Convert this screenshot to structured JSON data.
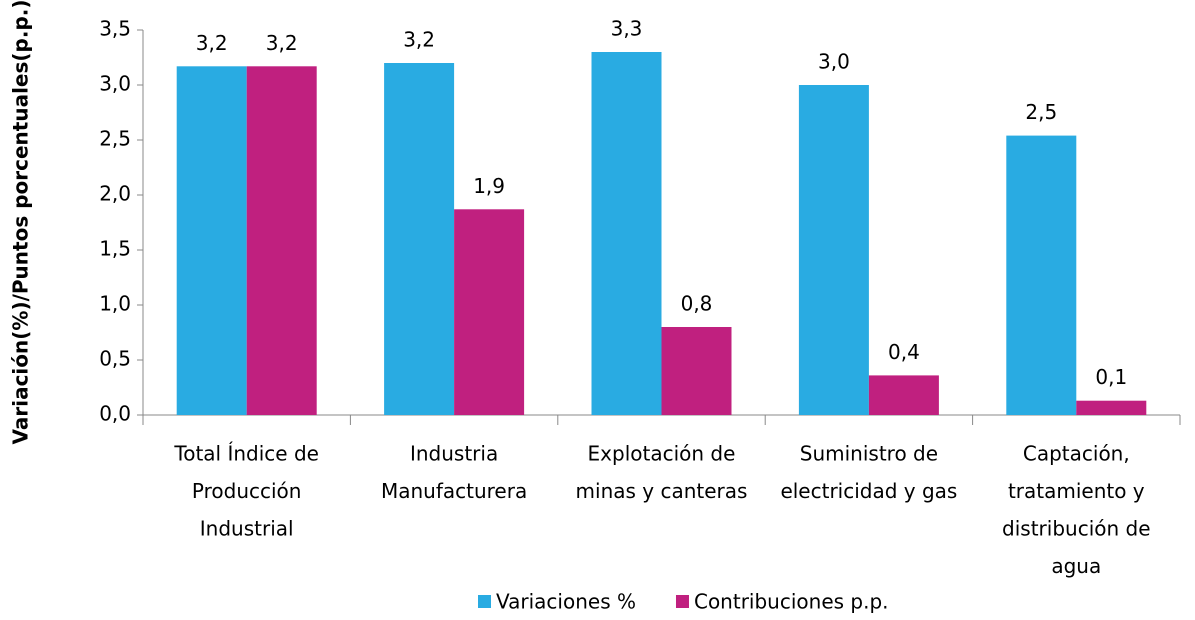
{
  "chart_data": {
    "type": "bar",
    "y_label": "Variación(%)/Puntos porcentuales(p.p.)",
    "categories": [
      [
        "Total Índice de",
        "Producción",
        "Industrial"
      ],
      [
        "Industria",
        "Manufacturera"
      ],
      [
        "Explotación de",
        "minas y canteras"
      ],
      [
        "Suministro de",
        "electricidad y gas"
      ],
      [
        "Captación,",
        "tratamiento y",
        "distribución de",
        "agua"
      ]
    ],
    "series": [
      {
        "name": "Variaciones %",
        "color": "#29abe2",
        "values": [
          3.17,
          3.2,
          3.3,
          3.0,
          2.54
        ],
        "value_labels": [
          "3,2",
          "3,2",
          "3,3",
          "3,0",
          "2,5"
        ]
      },
      {
        "name": "Contribuciones p.p.",
        "color": "#c0207f",
        "values": [
          3.17,
          1.87,
          0.8,
          0.36,
          0.13
        ],
        "value_labels": [
          "3,2",
          "1,9",
          "0,8",
          "0,4",
          "0,1"
        ]
      }
    ],
    "ylim": [
      0,
      3.5
    ],
    "yticks": [
      {
        "value": 0,
        "label": "0,0"
      },
      {
        "value": 0.5,
        "label": "0,5"
      },
      {
        "value": 1,
        "label": "1,0"
      },
      {
        "value": 1.5,
        "label": "1,5"
      },
      {
        "value": 2,
        "label": "2,0"
      },
      {
        "value": 2.5,
        "label": "2,5"
      },
      {
        "value": 3,
        "label": "3,0"
      },
      {
        "value": 3.5,
        "label": "3,5"
      }
    ],
    "grid": false,
    "legend": "bottom"
  }
}
